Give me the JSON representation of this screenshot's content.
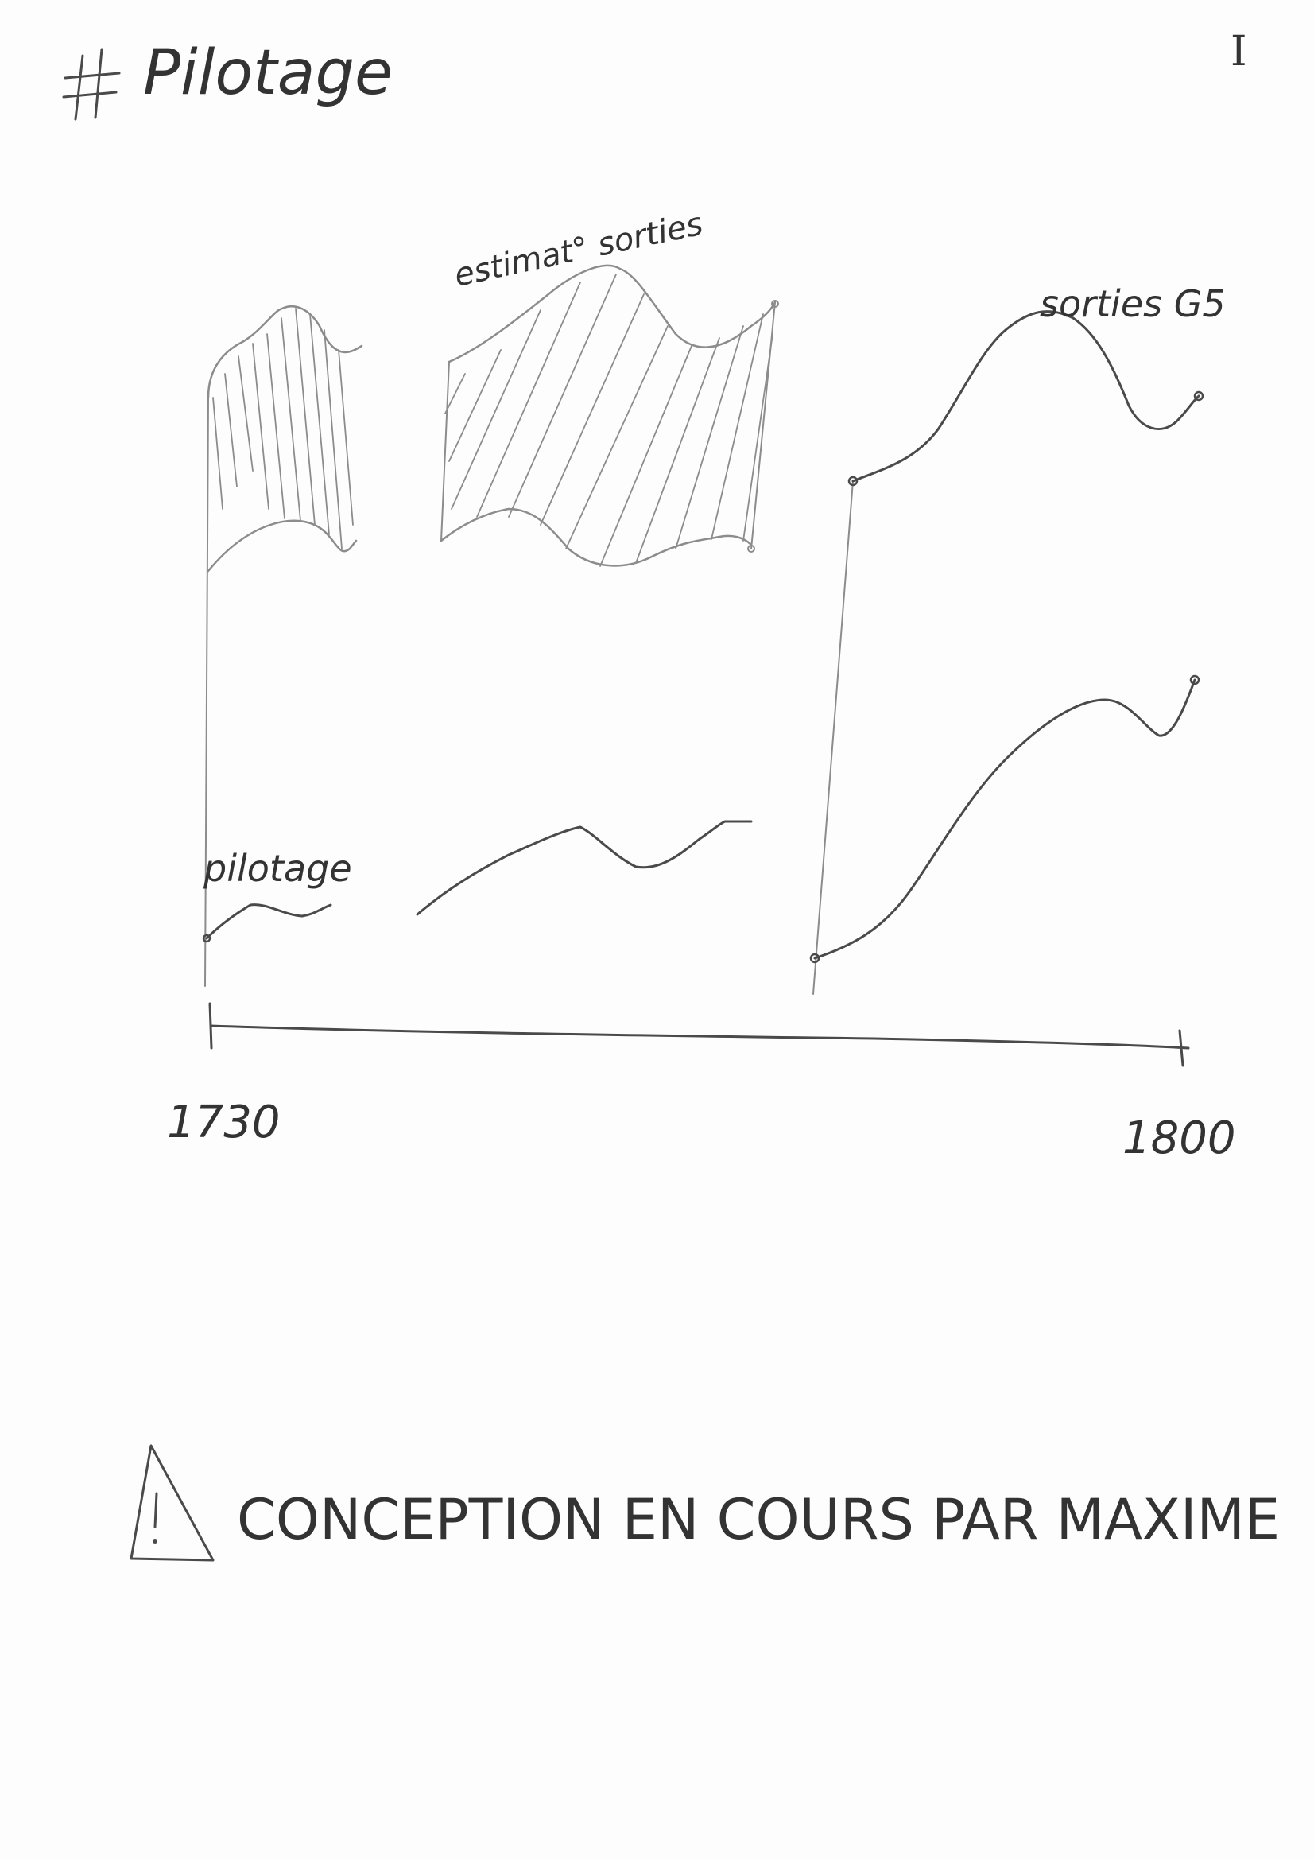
{
  "page": {
    "title": "# Pilotage",
    "page_marker": "I"
  },
  "sketch": {
    "labels": {
      "estimate": "estimat° sorties",
      "sorties": "sorties G5",
      "pilotage": "pilotage"
    },
    "axis": {
      "start": "1730",
      "end": "1800"
    }
  },
  "notice": {
    "text": "CONCEPTION EN COURS PAR MAXIME",
    "icon": "warning-triangle-icon"
  },
  "colors": {
    "ink": "#4a4a4a",
    "ink_light": "#8c8c8c"
  }
}
